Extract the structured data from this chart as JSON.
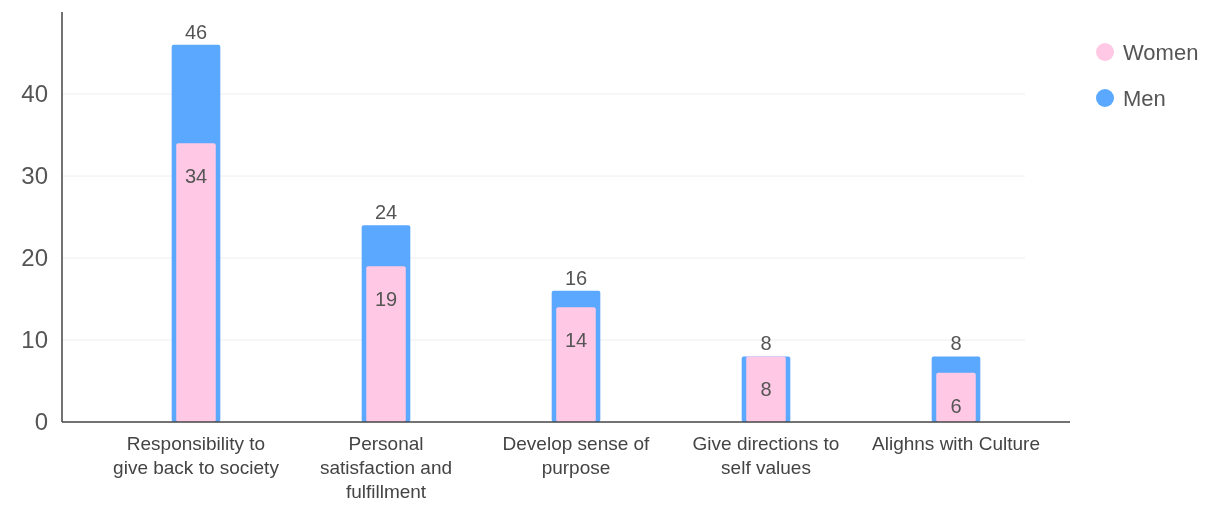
{
  "chart_data": {
    "type": "bar",
    "categories": [
      "Responsibility to give back to society",
      "Personal satisfaction and fulfillment",
      "Develop sense of purpose",
      "Give directions to self values",
      "Alighns with Culture"
    ],
    "series": [
      {
        "name": "Men",
        "color": "#5aa8ff",
        "values": [
          46,
          24,
          16,
          8,
          8
        ]
      },
      {
        "name": "Women",
        "color": "#ffc8e4",
        "values": [
          34,
          19,
          14,
          8,
          6
        ]
      }
    ],
    "ylim": [
      0,
      50
    ],
    "yticks": [
      0,
      10,
      20,
      30,
      40
    ],
    "grid": "y",
    "legend": "top right",
    "marker": "circle",
    "data_labels": true
  }
}
